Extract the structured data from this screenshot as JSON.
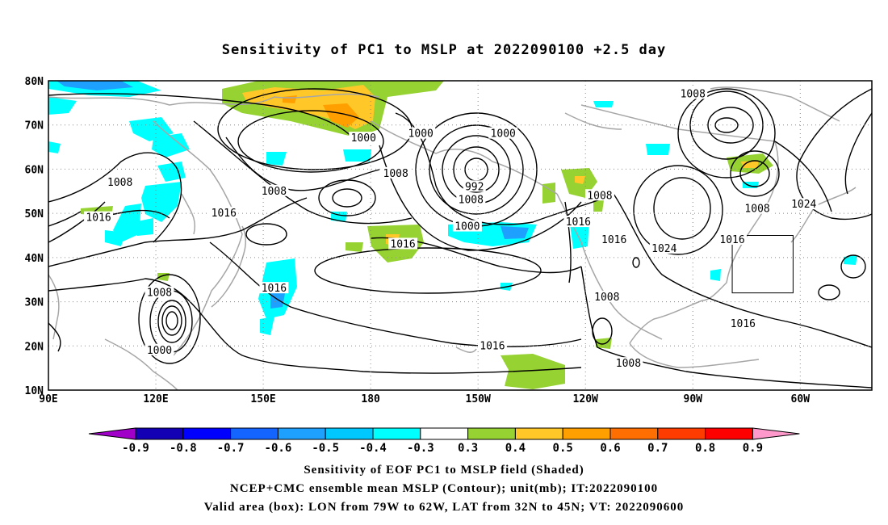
{
  "title": "Sensitivity of PC1 to MSLP at 2022090100 +2.5 day",
  "map": {
    "lat_labels": [
      "80N",
      "70N",
      "60N",
      "50N",
      "40N",
      "30N",
      "20N",
      "10N"
    ],
    "lon_labels": [
      "90E",
      "120E",
      "150E",
      "180",
      "150W",
      "120W",
      "90W",
      "60W"
    ],
    "valid_box": {
      "lon_min": -79,
      "lon_max": -62,
      "lat_min": 32,
      "lat_max": 45
    },
    "contour_labels": [
      {
        "text": "1008",
        "lon": -90,
        "lat": 77
      },
      {
        "text": "1000",
        "lon": 178,
        "lat": 67
      },
      {
        "text": "1000",
        "lon": -166,
        "lat": 68
      },
      {
        "text": "1000",
        "lon": -143,
        "lat": 68
      },
      {
        "text": "1008",
        "lon": -173,
        "lat": 59
      },
      {
        "text": "1008",
        "lon": -152,
        "lat": 53
      },
      {
        "text": "992",
        "lon": -151,
        "lat": 56
      },
      {
        "text": "1008",
        "lon": 110,
        "lat": 57
      },
      {
        "text": "1008",
        "lon": 153,
        "lat": 55
      },
      {
        "text": "1008",
        "lon": -116,
        "lat": 54
      },
      {
        "text": "1008",
        "lon": -72,
        "lat": 51
      },
      {
        "text": "1024",
        "lon": -59,
        "lat": 52
      },
      {
        "text": "1016",
        "lon": 104,
        "lat": 49
      },
      {
        "text": "1016",
        "lon": 139,
        "lat": 50
      },
      {
        "text": "1016",
        "lon": -171,
        "lat": 43
      },
      {
        "text": "1000",
        "lon": -153,
        "lat": 47
      },
      {
        "text": "1016",
        "lon": -122,
        "lat": 48
      },
      {
        "text": "1016",
        "lon": -112,
        "lat": 44
      },
      {
        "text": "1024",
        "lon": -98,
        "lat": 42
      },
      {
        "text": "1016",
        "lon": -79,
        "lat": 44
      },
      {
        "text": "1008",
        "lon": 121,
        "lat": 32
      },
      {
        "text": "1016",
        "lon": 153,
        "lat": 33
      },
      {
        "text": "1008",
        "lon": -114,
        "lat": 31
      },
      {
        "text": "1000",
        "lon": 121,
        "lat": 19
      },
      {
        "text": "1016",
        "lon": -146,
        "lat": 20
      },
      {
        "text": "1016",
        "lon": -76,
        "lat": 25
      },
      {
        "text": "1008",
        "lon": -108,
        "lat": 16
      }
    ]
  },
  "colorbar": {
    "labels": [
      "-0.9",
      "-0.8",
      "-0.7",
      "-0.6",
      "-0.5",
      "-0.4",
      "-0.3",
      "0.3",
      "0.4",
      "0.5",
      "0.6",
      "0.7",
      "0.8",
      "0.9"
    ],
    "colors": [
      "#a000c8",
      "#1400b4",
      "#0000ff",
      "#1464ff",
      "#1ea0ff",
      "#00c8ff",
      "#00ffff",
      "#ffffff",
      "#96d232",
      "#ffc828",
      "#ffa000",
      "#ff6e00",
      "#ff3c00",
      "#ff0000",
      "#ff99cc"
    ]
  },
  "caption": {
    "line1": "Sensitivity of EOF PC1 to MSLP field (Shaded)",
    "line2": "NCEP+CMC ensemble mean MSLP (Contour); unit(mb); IT:2022090100",
    "line3": "Valid area (box): LON from 79W to 62W, LAT from 32N to 45N; VT: 2022090600"
  }
}
